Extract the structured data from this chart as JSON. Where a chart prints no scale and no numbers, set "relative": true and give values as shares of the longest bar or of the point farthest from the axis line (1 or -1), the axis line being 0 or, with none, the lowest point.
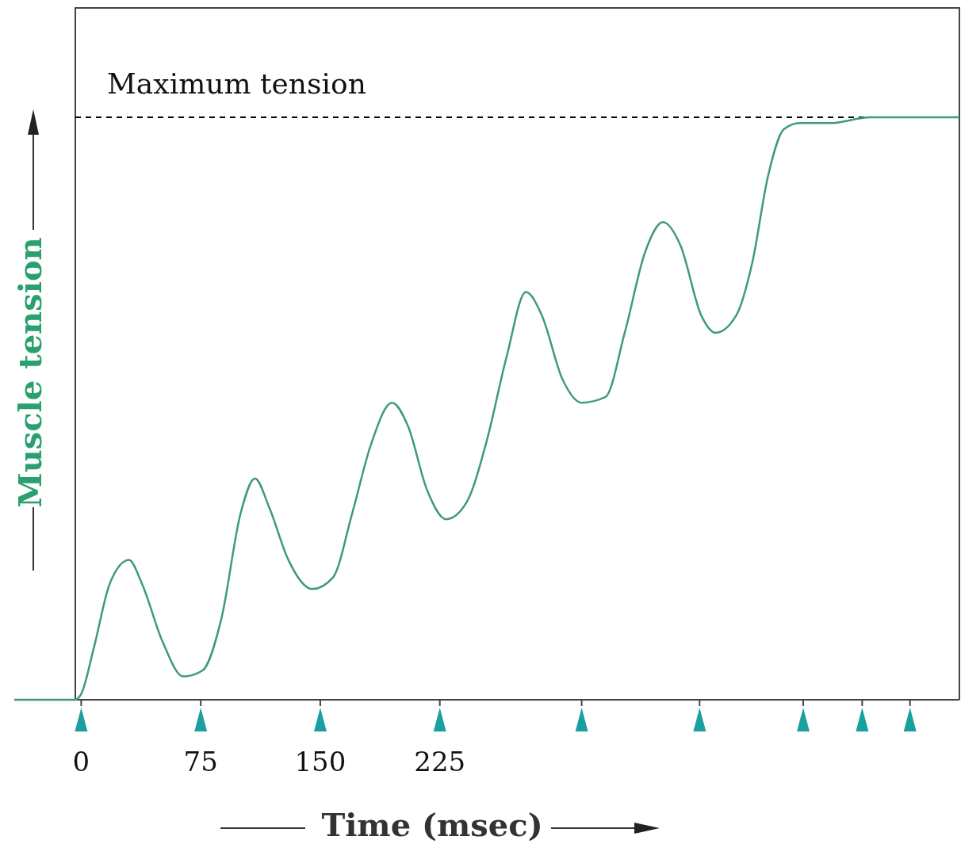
{
  "chart_data": {
    "type": "line",
    "relative": true,
    "xlabel": "Time (msec)",
    "ylabel": "Muscle tension",
    "xlim": [
      -42,
      551
    ],
    "xticks": [
      0,
      75,
      150,
      225,
      {
        "value": 314,
        "label": null
      },
      {
        "value": 388,
        "label": null
      },
      {
        "value": 453,
        "label": null
      },
      {
        "value": 490,
        "label": null
      },
      {
        "value": 520,
        "label": null
      }
    ],
    "x": [
      -42,
      -21,
      -4,
      0,
      8,
      18,
      30,
      38,
      51,
      64,
      76,
      88,
      100,
      109,
      118,
      130,
      145,
      158,
      170,
      182,
      195,
      205,
      217,
      229,
      242,
      254,
      267,
      279,
      289,
      302,
      314,
      329,
      341,
      354,
      365,
      376,
      389,
      398,
      411,
      421,
      431,
      441,
      451,
      470,
      495,
      551
    ],
    "series": [
      {
        "color": "#3f9a7c",
        "values": [
          0,
          0,
          0,
          0.01,
          0.09,
          0.2,
          0.24,
          0.2,
          0.1,
          0.04,
          0.05,
          0.14,
          0.32,
          0.38,
          0.33,
          0.24,
          0.19,
          0.21,
          0.32,
          0.44,
          0.51,
          0.47,
          0.36,
          0.31,
          0.34,
          0.44,
          0.59,
          0.7,
          0.66,
          0.55,
          0.51,
          0.52,
          0.63,
          0.77,
          0.82,
          0.78,
          0.66,
          0.63,
          0.66,
          0.75,
          0.9,
          0.98,
          0.99,
          0.99,
          1,
          1
        ]
      }
    ],
    "ref_lines": [
      {
        "axis": "y",
        "value": 1,
        "label": "Maximum tension",
        "line_style": "dashed",
        "color": "#000000"
      }
    ],
    "line_style": "solid"
  }
}
